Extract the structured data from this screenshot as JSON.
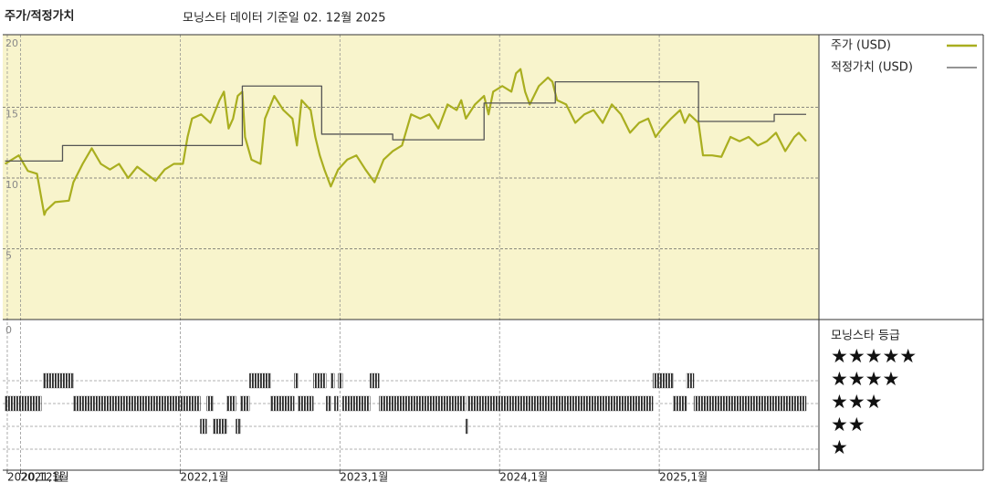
{
  "chart_data": {
    "type": "line",
    "label": "주가/적정가치",
    "title": "모닝스타 데이터 기준일 02. 12월 2025",
    "xlim": [
      2020.9,
      2026.0
    ],
    "xticks": [
      {
        "value": 2020.917,
        "label": "2020,12월"
      },
      {
        "value": 2021,
        "label": "2021,1월"
      },
      {
        "value": 2022,
        "label": "2022,1월"
      },
      {
        "value": 2023,
        "label": "2023,1월"
      },
      {
        "value": 2024,
        "label": "2024,1월"
      },
      {
        "value": 2025,
        "label": "2025,1월"
      }
    ],
    "ylim": [
      0,
      20
    ],
    "yticks": [
      5,
      10,
      15,
      20
    ],
    "grid": true,
    "background": "#f8f4cc",
    "series": [
      {
        "name": "주가 (USD)",
        "color": "#a9ae1f",
        "step": false,
        "x": [
          2020.903,
          2020.989,
          2021.046,
          2021.103,
          2021.149,
          2021.16,
          2021.217,
          2021.303,
          2021.331,
          2021.389,
          2021.446,
          2021.503,
          2021.56,
          2021.617,
          2021.674,
          2021.731,
          2021.789,
          2021.846,
          2021.903,
          2021.96,
          2022.017,
          2022.046,
          2022.074,
          2022.131,
          2022.189,
          2022.246,
          2022.274,
          2022.303,
          2022.331,
          2022.36,
          2022.389,
          2022.406,
          2022.446,
          2022.503,
          2022.531,
          2022.589,
          2022.646,
          2022.703,
          2022.731,
          2022.76,
          2022.817,
          2022.846,
          2022.874,
          2022.903,
          2022.943,
          2022.989,
          2023.046,
          2023.103,
          2023.16,
          2023.217,
          2023.274,
          2023.331,
          2023.389,
          2023.446,
          2023.503,
          2023.56,
          2023.617,
          2023.674,
          2023.731,
          2023.76,
          2023.789,
          2023.846,
          2023.903,
          2023.931,
          2023.96,
          2024.017,
          2024.074,
          2024.103,
          2024.131,
          2024.16,
          2024.189,
          2024.246,
          2024.303,
          2024.331,
          2024.36,
          2024.417,
          2024.474,
          2024.531,
          2024.589,
          2024.646,
          2024.703,
          2024.76,
          2024.817,
          2024.874,
          2024.931,
          2024.977,
          2025.017,
          2025.074,
          2025.131,
          2025.16,
          2025.189,
          2025.246,
          2025.274,
          2025.331,
          2025.389,
          2025.446,
          2025.503,
          2025.56,
          2025.617,
          2025.674,
          2025.731,
          2025.789,
          2025.846,
          2025.874,
          2025.92
        ],
        "values": [
          11.0,
          11.6,
          10.5,
          10.3,
          7.4,
          7.7,
          8.3,
          8.4,
          9.7,
          11.0,
          12.1,
          11.0,
          10.6,
          11.0,
          10.0,
          10.8,
          10.3,
          9.8,
          10.6,
          11.0,
          11.0,
          12.9,
          14.2,
          14.5,
          13.9,
          15.5,
          16.1,
          13.5,
          14.2,
          15.8,
          16.1,
          12.9,
          11.3,
          11.0,
          14.2,
          15.8,
          14.8,
          14.2,
          12.3,
          15.5,
          14.8,
          12.9,
          11.6,
          10.6,
          9.4,
          10.6,
          11.3,
          11.6,
          10.6,
          9.7,
          11.3,
          11.9,
          12.3,
          14.5,
          14.2,
          14.5,
          13.5,
          15.2,
          14.8,
          15.5,
          14.2,
          15.2,
          15.8,
          14.5,
          16.1,
          16.5,
          16.1,
          17.4,
          17.7,
          16.1,
          15.2,
          16.5,
          17.1,
          16.8,
          15.5,
          15.2,
          13.9,
          14.5,
          14.8,
          13.9,
          15.2,
          14.5,
          13.2,
          13.9,
          14.2,
          12.9,
          13.5,
          14.2,
          14.8,
          13.9,
          14.5,
          13.9,
          11.6,
          11.6,
          11.5,
          12.9,
          12.6,
          12.9,
          12.3,
          12.6,
          13.2,
          11.9,
          12.9,
          13.2,
          12.6
        ]
      },
      {
        "name": "적정가치 (USD)",
        "color": "#555555",
        "step": true,
        "x": [
          2020.903,
          2021.263,
          2022.389,
          2022.886,
          2023.331,
          2023.903,
          2024.349,
          2025.246,
          2025.72,
          2025.92
        ],
        "values": [
          11.2,
          12.3,
          16.5,
          13.1,
          12.7,
          15.3,
          16.8,
          14.0,
          14.5,
          14.5
        ]
      }
    ],
    "rating_title": "모닝스타 등급",
    "rating_tick": "0",
    "rating_color": "#2a2a2a",
    "rating_legend": [
      {
        "label": "★★★★★",
        "stars": 5
      },
      {
        "label": "★★★★",
        "stars": 4
      },
      {
        "label": "★★★",
        "stars": 3
      },
      {
        "label": "★★",
        "stars": 2
      },
      {
        "label": "★",
        "stars": 1
      }
    ],
    "ratings": [
      {
        "start": 2020.903,
        "end": 2021.131,
        "stars": 3
      },
      {
        "start": 2021.143,
        "end": 2021.331,
        "stars": 4
      },
      {
        "start": 2021.331,
        "end": 2022.126,
        "stars": 3
      },
      {
        "start": 2022.126,
        "end": 2022.166,
        "stars": 2
      },
      {
        "start": 2022.166,
        "end": 2022.206,
        "stars": 3
      },
      {
        "start": 2022.206,
        "end": 2022.291,
        "stars": 2
      },
      {
        "start": 2022.291,
        "end": 2022.349,
        "stars": 3
      },
      {
        "start": 2022.349,
        "end": 2022.377,
        "stars": 2
      },
      {
        "start": 2022.377,
        "end": 2022.434,
        "stars": 3
      },
      {
        "start": 2022.434,
        "end": 2022.566,
        "stars": 4
      },
      {
        "start": 2022.566,
        "end": 2022.714,
        "stars": 3
      },
      {
        "start": 2022.714,
        "end": 2022.737,
        "stars": 4
      },
      {
        "start": 2022.737,
        "end": 2022.834,
        "stars": 3
      },
      {
        "start": 2022.834,
        "end": 2022.914,
        "stars": 4
      },
      {
        "start": 2022.914,
        "end": 2022.943,
        "stars": 3
      },
      {
        "start": 2022.943,
        "end": 2022.966,
        "stars": 4
      },
      {
        "start": 2022.966,
        "end": 2022.989,
        "stars": 3
      },
      {
        "start": 2022.989,
        "end": 2023.017,
        "stars": 4
      },
      {
        "start": 2023.017,
        "end": 2023.189,
        "stars": 3
      },
      {
        "start": 2023.189,
        "end": 2023.246,
        "stars": 4
      },
      {
        "start": 2023.246,
        "end": 2023.789,
        "stars": 3
      },
      {
        "start": 2023.789,
        "end": 2023.8,
        "stars": 2
      },
      {
        "start": 2023.8,
        "end": 2024.96,
        "stars": 3
      },
      {
        "start": 2024.96,
        "end": 2025.086,
        "stars": 4
      },
      {
        "start": 2025.086,
        "end": 2025.171,
        "stars": 3
      },
      {
        "start": 2025.171,
        "end": 2025.217,
        "stars": 4
      },
      {
        "start": 2025.217,
        "end": 2025.92,
        "stars": 3
      }
    ]
  }
}
